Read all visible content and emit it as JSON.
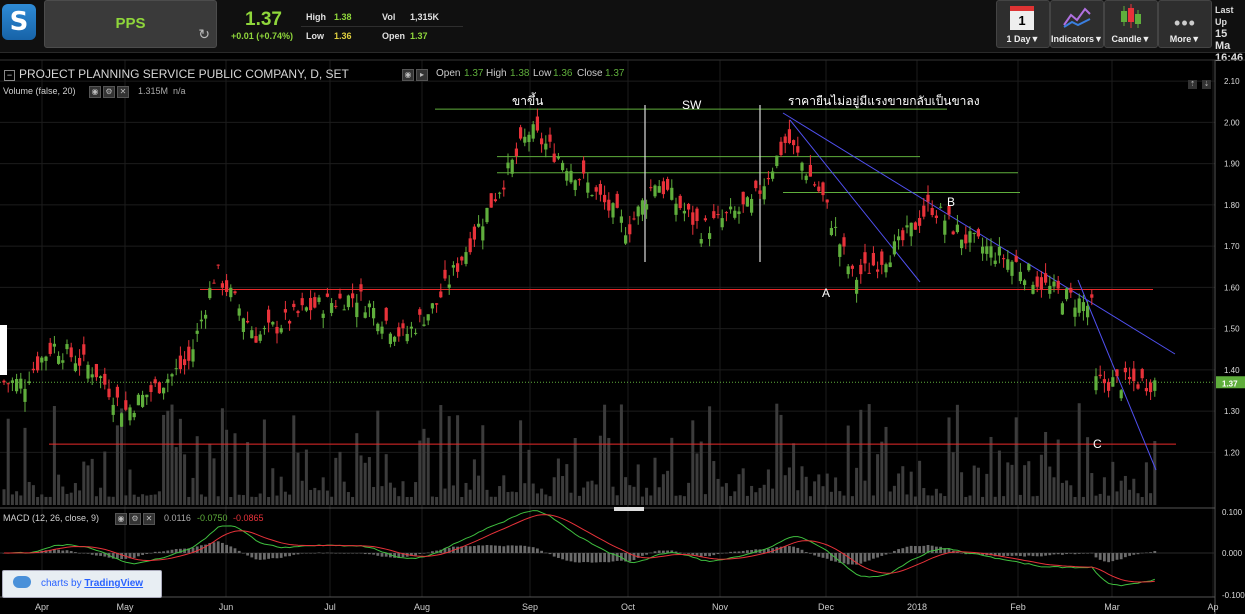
{
  "header": {
    "symbol": "PPS",
    "last_price": "1.37",
    "change": "+0.01 (+0.74%)",
    "high_label": "High",
    "high": "1.38",
    "low_label": "Low",
    "low": "1.36",
    "vol_label": "Vol",
    "vol": "1,315K",
    "open_label": "Open",
    "open": "1.37",
    "buttons": [
      {
        "label": "1 Day▼",
        "icon": "calendar-icon",
        "value": "1"
      },
      {
        "label": "Indicators▼",
        "icon": "indicators-icon"
      },
      {
        "label": "Candle▼",
        "icon": "candle-icon"
      },
      {
        "label": "More▼",
        "icon": "more-icon"
      }
    ],
    "last_update_label": "Last Up",
    "last_update_date": "15 Ma",
    "last_update_time": "16:46"
  },
  "chart_title": "PROJECT PLANNING SERVICE PUBLIC COMPANY, D, SET",
  "ohlc_bar": {
    "open_label": "Open",
    "open": "1.37",
    "high_label": "High",
    "high": "1.38",
    "low_label": "Low",
    "low": "1.36",
    "close_label": "Close",
    "close": "1.37"
  },
  "volume_label": "Volume (false, 20)",
  "volume_value": "1.315M",
  "volume_na": "n/a",
  "macd_label": "MACD (12, 26, close, 9)",
  "macd_values": [
    "0.0116",
    "-0.0750",
    "-0.0865"
  ],
  "badge": {
    "prefix": "charts by",
    "brand": "TradingView"
  },
  "colors": {
    "up": "#5fae3c",
    "down": "#e8323a",
    "accent_green": "#8fd63b",
    "support": "#e82a2a",
    "trend": "#5050f0",
    "resistance": "#5fae3c"
  },
  "chart_data": {
    "type": "candlestick",
    "price_axis": {
      "min": 1.15,
      "max": 2.12,
      "ticks": [
        "2.10",
        "2.00",
        "1.90",
        "1.80",
        "1.70",
        "1.60",
        "1.50",
        "1.40",
        "1.30",
        "1.20"
      ],
      "current_label": "1.37"
    },
    "macd_axis": {
      "ticks": [
        "0.100",
        "0.000",
        "-0.100"
      ]
    },
    "x_labels": [
      "Apr",
      "May",
      "Jun",
      "Jul",
      "Aug",
      "Sep",
      "Oct",
      "Nov",
      "Dec",
      "2018",
      "Feb",
      "Mar",
      "Ap"
    ],
    "annotations": [
      "ขาขึ้น",
      "SW",
      "ราคายืนไม่อยู่มีแรงขายกลับเป็นขาลง",
      "A",
      "B",
      "C"
    ],
    "support_levels": [
      1.595,
      1.22
    ],
    "resistance_levels": [
      2.032,
      1.917,
      1.878,
      1.83
    ],
    "key_points": [
      {
        "label": "ขาขึ้น",
        "price": 2.03
      },
      {
        "label": "A",
        "price": 1.6
      },
      {
        "label": "B",
        "price": 1.82
      },
      {
        "label": "C",
        "price": 1.22
      }
    ],
    "last_close": 1.37,
    "series_anchors": [
      [
        "Mar 25",
        1.38
      ],
      [
        "Apr 5",
        1.46
      ],
      [
        "Apr 20",
        1.4
      ],
      [
        "May 1",
        1.3
      ],
      [
        "May 20",
        1.42
      ],
      [
        "May 28",
        1.64
      ],
      [
        "Jun 10",
        1.48
      ],
      [
        "Jun 25",
        1.55
      ],
      [
        "Jul 10",
        1.58
      ],
      [
        "Jul 25",
        1.48
      ],
      [
        "Aug 5",
        1.56
      ],
      [
        "Aug 20",
        1.8
      ],
      [
        "Sep 1",
        1.98
      ],
      [
        "Sep 15",
        1.88
      ],
      [
        "Oct 1",
        1.74
      ],
      [
        "Oct 10",
        1.86
      ],
      [
        "Oct 25",
        1.74
      ],
      [
        "Nov 10",
        1.8
      ],
      [
        "Nov 20",
        1.96
      ],
      [
        "Nov 30",
        1.82
      ],
      [
        "Dec 10",
        1.62
      ],
      [
        "Dec 25",
        1.7
      ],
      [
        "Jan 5",
        1.8
      ],
      [
        "Jan 15",
        1.72
      ],
      [
        "Jan 30",
        1.66
      ],
      [
        "Feb 10",
        1.6
      ],
      [
        "Feb 25",
        1.55
      ],
      [
        "Mar 5",
        1.3
      ],
      [
        "Mar 10",
        1.22
      ],
      [
        "Mar 15",
        1.37
      ]
    ]
  }
}
